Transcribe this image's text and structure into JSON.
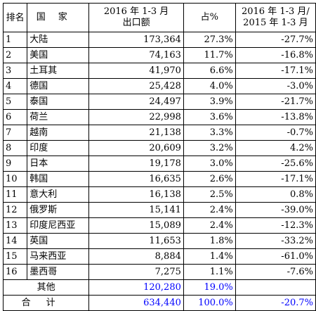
{
  "header": {
    "rank": "排名",
    "country": "国家",
    "export_line1": "2016 年 1-3 月",
    "export_line2": "出口额",
    "share": "占%",
    "growth_line1": "2016 年 1-3 月/",
    "growth_line2": "2015 年 1-3 月"
  },
  "rows": [
    {
      "rank": "1",
      "country": "大陆",
      "export": "173,364",
      "share": "27.3%",
      "growth": "-27.7%"
    },
    {
      "rank": "2",
      "country": "美国",
      "export": "74,163",
      "share": "11.7%",
      "growth": "-16.8%"
    },
    {
      "rank": "3",
      "country": "土耳其",
      "export": "41,970",
      "share": "6.6%",
      "growth": "-17.1%"
    },
    {
      "rank": "4",
      "country": "德国",
      "export": "25,428",
      "share": "4.0%",
      "growth": "-3.0%"
    },
    {
      "rank": "5",
      "country": "泰国",
      "export": "24,497",
      "share": "3.9%",
      "growth": "-21.7%"
    },
    {
      "rank": "6",
      "country": "荷兰",
      "export": "22,998",
      "share": "3.6%",
      "growth": "-13.8%"
    },
    {
      "rank": "7",
      "country": "越南",
      "export": "21,138",
      "share": "3.3%",
      "growth": "-0.7%"
    },
    {
      "rank": "8",
      "country": "印度",
      "export": "20,609",
      "share": "3.2%",
      "growth": "4.2%"
    },
    {
      "rank": "9",
      "country": "日本",
      "export": "19,178",
      "share": "3.0%",
      "growth": "-25.6%"
    },
    {
      "rank": "10",
      "country": "韩国",
      "export": "16,635",
      "share": "2.6%",
      "growth": "-17.1%"
    },
    {
      "rank": "11",
      "country": "意大利",
      "export": "16,138",
      "share": "2.5%",
      "growth": "0.8%"
    },
    {
      "rank": "12",
      "country": "俄罗斯",
      "export": "15,141",
      "share": "2.4%",
      "growth": "-39.0%"
    },
    {
      "rank": "13",
      "country": "印度尼西亚",
      "export": "15,089",
      "share": "2.4%",
      "growth": "-12.3%"
    },
    {
      "rank": "14",
      "country": "英国",
      "export": "11,653",
      "share": "1.8%",
      "growth": "-33.2%"
    },
    {
      "rank": "15",
      "country": "马来西亚",
      "export": "8,884",
      "share": "1.4%",
      "growth": "-61.0%"
    },
    {
      "rank": "16",
      "country": "墨西哥",
      "export": "7,275",
      "share": "1.1%",
      "growth": "-7.6%"
    }
  ],
  "others": {
    "label": "其他",
    "export": "120,280",
    "share": "19.0%",
    "growth": ""
  },
  "total": {
    "label": "合计",
    "export": "634,440",
    "share": "100.0%",
    "growth": "-20.7%"
  },
  "colors": {
    "highlight": "#0000ff"
  }
}
